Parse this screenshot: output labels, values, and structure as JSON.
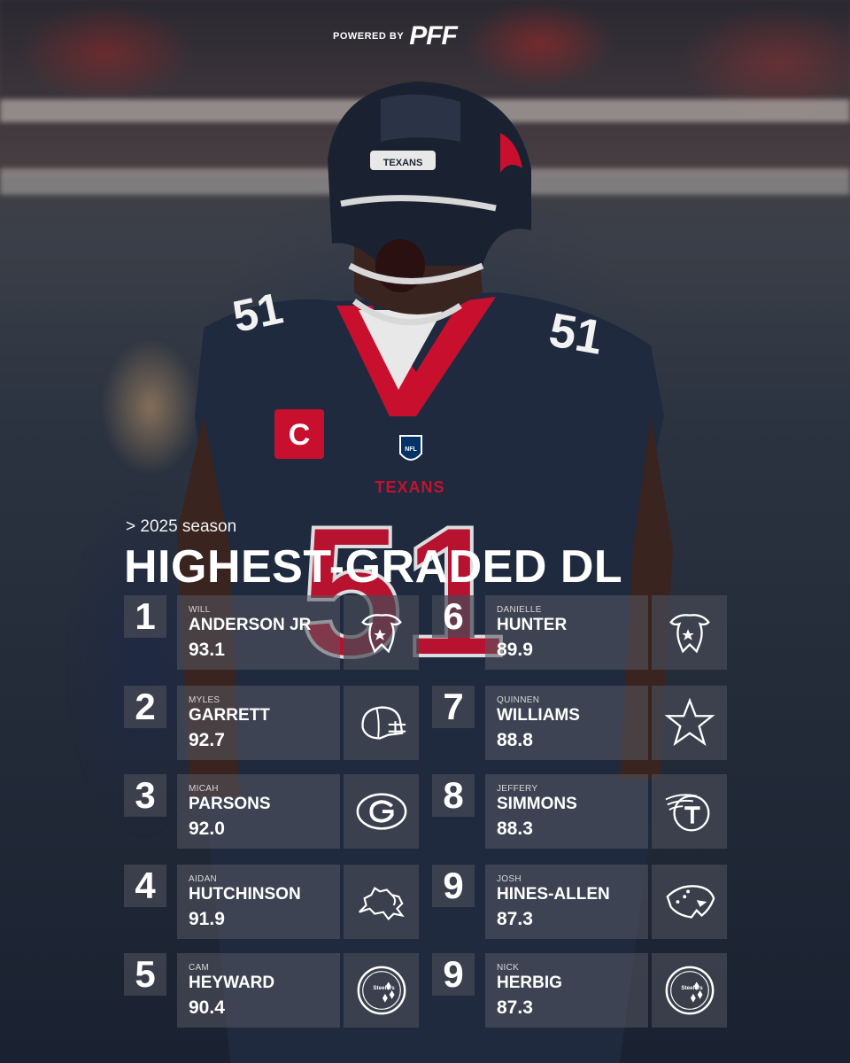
{
  "brand": {
    "powered_by": "POWERED BY",
    "name": "PFF"
  },
  "subtitle": "> 2025 season",
  "title": "HIGHEST-GRADED DL",
  "players": [
    {
      "rank": "1",
      "first": "WILL",
      "last": "ANDERSON JR",
      "grade": "93.1",
      "team_icon": "texans-logo-icon"
    },
    {
      "rank": "2",
      "first": "MYLES",
      "last": "GARRETT",
      "grade": "92.7",
      "team_icon": "browns-helmet-icon"
    },
    {
      "rank": "3",
      "first": "MICAH",
      "last": "PARSONS",
      "grade": "92.0",
      "team_icon": "packers-logo-icon"
    },
    {
      "rank": "4",
      "first": "AIDAN",
      "last": "HUTCHINSON",
      "grade": "91.9",
      "team_icon": "lions-logo-icon"
    },
    {
      "rank": "5",
      "first": "CAM",
      "last": "HEYWARD",
      "grade": "90.4",
      "team_icon": "steelers-logo-icon",
      "team_icon_text": "Steelers"
    },
    {
      "rank": "6",
      "first": "DANIELLE",
      "last": "HUNTER",
      "grade": "89.9",
      "team_icon": "texans-logo-icon"
    },
    {
      "rank": "7",
      "first": "QUINNEN",
      "last": "WILLIAMS",
      "grade": "88.8",
      "team_icon": "cowboys-star-icon"
    },
    {
      "rank": "8",
      "first": "JEFFERY",
      "last": "SIMMONS",
      "grade": "88.3",
      "team_icon": "titans-logo-icon"
    },
    {
      "rank": "9",
      "first": "JOSH",
      "last": "HINES-ALLEN",
      "grade": "87.3",
      "team_icon": "jaguars-logo-icon"
    },
    {
      "rank": "9",
      "first": "NICK",
      "last": "HERBIG",
      "grade": "87.3",
      "team_icon": "steelers-logo-icon",
      "team_icon_text": "Steelers"
    }
  ],
  "photo": {
    "helmet_wordmark": "TEXANS",
    "jersey_wordmark": "TEXANS",
    "jersey_number": "51",
    "captain_patch": "C",
    "shield_text": "NFL"
  },
  "colors": {
    "texans_red": "#c8102e",
    "texans_navy": "#1b2538",
    "panel": "#555862"
  }
}
